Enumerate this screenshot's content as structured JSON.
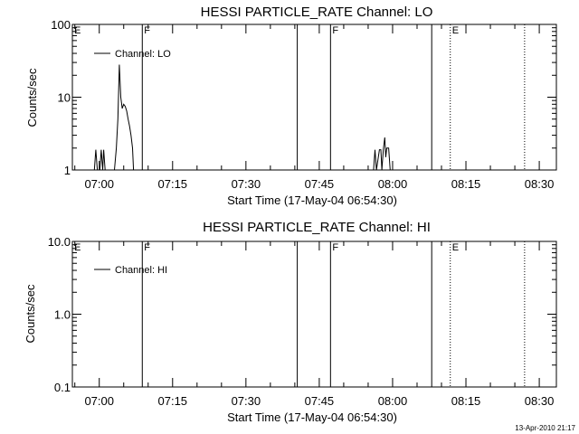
{
  "chart_data": [
    {
      "type": "line",
      "title": "HESSI PARTICLE_RATE Channel: LO",
      "xlabel": "Start Time (17-May-04 06:54:30)",
      "ylabel": "Counts/sec",
      "yscale": "log",
      "ylim": [
        1,
        100
      ],
      "ytick_labels": [
        "1",
        "10",
        "100"
      ],
      "yticks": [
        1,
        10,
        100
      ],
      "xlim_minutes": [
        -5.5,
        93.5
      ],
      "xtick_labels": [
        "07:00",
        "07:15",
        "07:30",
        "07:45",
        "08:00",
        "08:15",
        "08:30"
      ],
      "xticks_minutes": [
        0,
        15,
        30,
        45,
        60,
        75,
        90
      ],
      "legend": "Channel: LO",
      "legend_position": "top-left",
      "markers": [
        {
          "x": -5.5,
          "label": "E",
          "style": "none"
        },
        {
          "x": 8.8,
          "label": "F",
          "style": "solid"
        },
        {
          "x": 40.5,
          "label": "",
          "style": "solid"
        },
        {
          "x": 47.3,
          "label": "F",
          "style": "solid"
        },
        {
          "x": 68.0,
          "label": "",
          "style": "solid"
        },
        {
          "x": 71.8,
          "label": "E",
          "style": "dotted"
        },
        {
          "x": 87.0,
          "label": "",
          "style": "dotted"
        }
      ],
      "series": [
        {
          "name": "Channel: LO",
          "segments": [
            [
              [
                -1.0,
                1
              ],
              [
                -0.7,
                1.9
              ],
              [
                -0.4,
                1
              ],
              [
                0.1,
                1
              ],
              [
                0.4,
                1.9
              ],
              [
                0.7,
                1
              ],
              [
                0.9,
                1.9
              ],
              [
                1.2,
                1
              ]
            ],
            [
              [
                3.1,
                1
              ],
              [
                3.5,
                2
              ],
              [
                3.8,
                5
              ],
              [
                4.1,
                28
              ],
              [
                4.4,
                10
              ],
              [
                4.7,
                7
              ],
              [
                5.0,
                8
              ],
              [
                5.3,
                7.5
              ],
              [
                5.6,
                6.5
              ],
              [
                5.9,
                5
              ],
              [
                6.2,
                4
              ],
              [
                6.5,
                3
              ],
              [
                6.8,
                2
              ],
              [
                7.0,
                1
              ]
            ],
            [
              [
                56.1,
                1
              ],
              [
                56.4,
                1.9
              ],
              [
                56.7,
                1
              ],
              [
                57.3,
                1.9
              ],
              [
                57.6,
                1.9
              ],
              [
                57.8,
                1
              ],
              [
                58.1,
                1.9
              ],
              [
                58.4,
                2.8
              ],
              [
                58.6,
                1.5
              ],
              [
                58.8,
                2.0
              ],
              [
                59.2,
                2.0
              ],
              [
                59.5,
                1
              ]
            ]
          ]
        }
      ]
    },
    {
      "type": "line",
      "title": "HESSI PARTICLE_RATE Channel: HI",
      "xlabel": "Start Time (17-May-04 06:54:30)",
      "ylabel": "Counts/sec",
      "yscale": "log",
      "ylim": [
        0.1,
        10
      ],
      "ytick_labels": [
        "0.1",
        "1.0",
        "10.0"
      ],
      "yticks": [
        0.1,
        1,
        10
      ],
      "xlim_minutes": [
        -5.5,
        93.5
      ],
      "xtick_labels": [
        "07:00",
        "07:15",
        "07:30",
        "07:45",
        "08:00",
        "08:15",
        "08:30"
      ],
      "xticks_minutes": [
        0,
        15,
        30,
        45,
        60,
        75,
        90
      ],
      "legend": "Channel: HI",
      "legend_position": "top-left",
      "markers": [
        {
          "x": -5.5,
          "label": "E",
          "style": "none"
        },
        {
          "x": 8.8,
          "label": "F",
          "style": "solid"
        },
        {
          "x": 40.5,
          "label": "",
          "style": "solid"
        },
        {
          "x": 47.3,
          "label": "F",
          "style": "solid"
        },
        {
          "x": 68.0,
          "label": "",
          "style": "solid"
        },
        {
          "x": 71.8,
          "label": "E",
          "style": "dotted"
        },
        {
          "x": 87.0,
          "label": "",
          "style": "dotted"
        }
      ],
      "series": [
        {
          "name": "Channel: HI",
          "segments": []
        }
      ]
    }
  ],
  "footer": {
    "timestamp": "13-Apr-2010 21:17"
  }
}
